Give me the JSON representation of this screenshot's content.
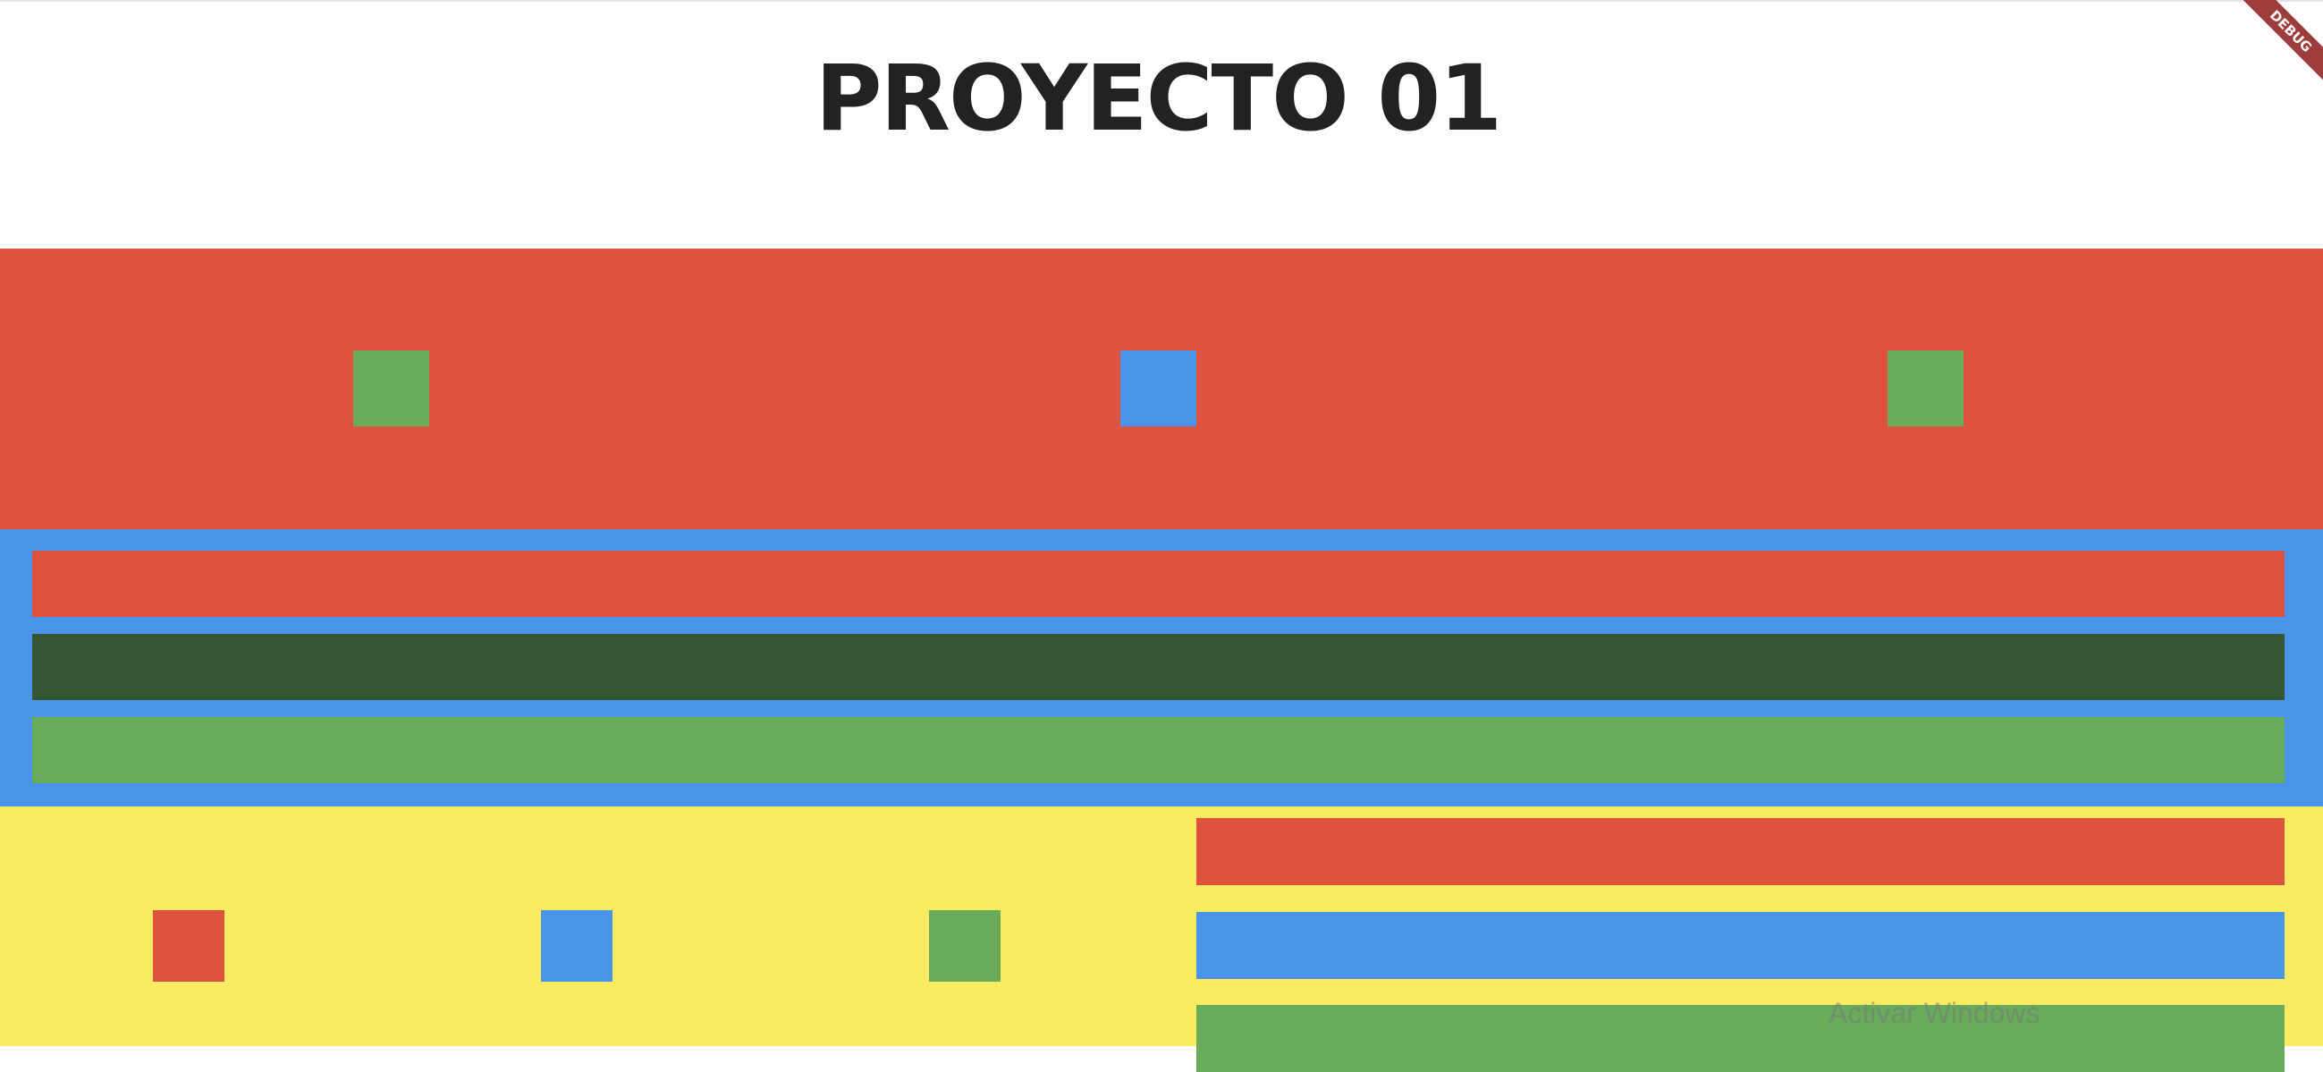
{
  "app": {
    "title": "PROYECTO 01",
    "debug_label": "DEBUG"
  },
  "colors": {
    "red": "#e05240",
    "blue": "#4a94ea",
    "green": "#68ac5a",
    "dark_green": "#365533",
    "yellow": "#fbeb62",
    "white": "#ffffff",
    "title_text": "#222222"
  },
  "sections": {
    "top_row": {
      "background": "red",
      "squares": [
        "green",
        "blue",
        "green"
      ]
    },
    "middle_column": {
      "background": "blue",
      "bars": [
        "red",
        "dark_green",
        "green"
      ]
    },
    "bottom": {
      "background": "yellow",
      "left_squares": [
        "red",
        "blue",
        "green"
      ],
      "right_bars": [
        "red",
        "blue",
        "green"
      ]
    }
  },
  "watermark": {
    "text": "Activar Windows"
  }
}
